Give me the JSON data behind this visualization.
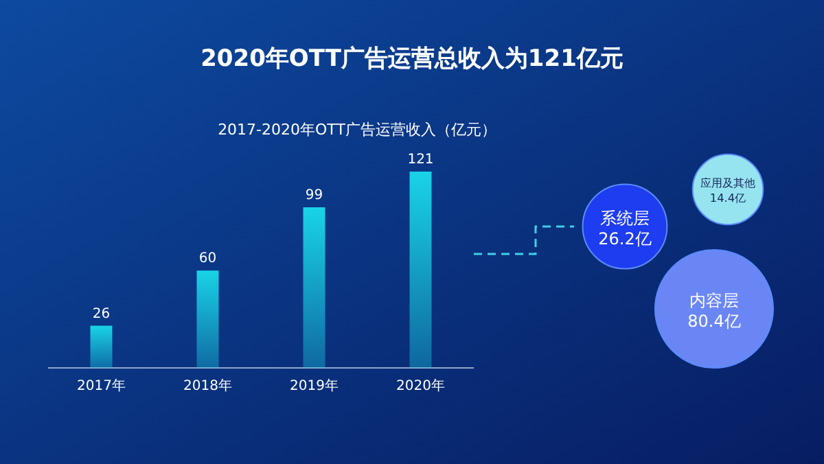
{
  "chart_data": [
    {
      "type": "bar",
      "title": "2020年OTT广告运营总收入为121亿元",
      "subtitle": "2017-2020年OTT广告运营收入（亿元）",
      "categories": [
        "2017年",
        "2018年",
        "2019年",
        "2020年"
      ],
      "values": [
        26,
        60,
        99,
        121
      ],
      "color": "#19d3e6",
      "data_labels": true
    },
    {
      "type": "other",
      "categories": [
        "系统层",
        "应用及其他",
        "内容层"
      ],
      "values": [
        26.2,
        14.4,
        80.4
      ],
      "value_labels": [
        "26.2亿",
        "14.4亿",
        "80.4亿"
      ],
      "colors": [
        "#1e3cf0",
        "#96e4f0",
        "#6a86f5"
      ]
    }
  ]
}
